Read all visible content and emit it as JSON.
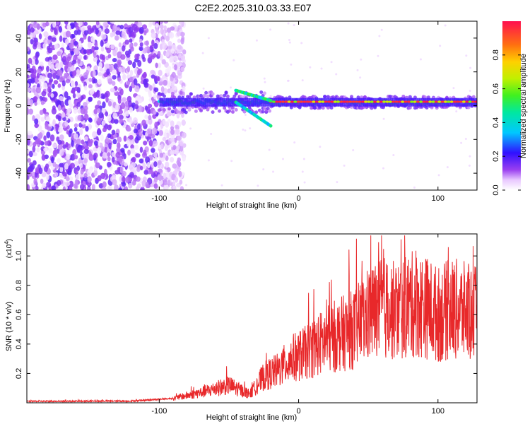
{
  "chart_data": [
    {
      "type": "heatmap",
      "title": "C2E2.2025.310.03.33.E07",
      "xlabel": "Height of straight line (km)",
      "ylabel": "Frequency (Hz)",
      "xlim": [
        -195,
        128
      ],
      "ylim": [
        -50,
        50
      ],
      "x_ticks": [
        -100,
        0,
        100
      ],
      "y_ticks": [
        -40,
        -20,
        0,
        20,
        40
      ],
      "colorbar": {
        "label": "Normalized spectral amplitude",
        "range": [
          0.0,
          1.0
        ],
        "ticks": [
          0.0,
          0.2,
          0.4,
          0.6,
          0.8
        ],
        "colormap": "rainbow (white-violet-blue-cyan-green-yellow-red)"
      },
      "description_values": {
        "noise_region_km": [
          -195,
          -90
        ],
        "signal_band_start_km": -100,
        "signal_center_hz": 2
      }
    },
    {
      "type": "line",
      "xlabel": "Height of straight line (km)",
      "ylabel": "SNR (10 * v/v)",
      "yscale_label": "(x10",
      "yscale_exp": "4",
      "yscale_close": ")",
      "xlim": [
        -195,
        128
      ],
      "ylim": [
        0,
        1.15
      ],
      "x_ticks": [
        -100,
        0,
        100
      ],
      "y_ticks": [
        0.2,
        0.4,
        0.6,
        0.8,
        1.0
      ],
      "color": "#e8282a",
      "trend": {
        "x": [
          -195,
          -120,
          -90,
          -70,
          -50,
          -35,
          -25,
          -15,
          -5,
          5,
          15,
          25,
          40,
          50,
          60,
          70,
          80,
          90,
          100,
          110,
          120,
          128
        ],
        "y": [
          0.01,
          0.012,
          0.03,
          0.07,
          0.12,
          0.06,
          0.18,
          0.22,
          0.3,
          0.34,
          0.4,
          0.45,
          0.5,
          0.6,
          0.65,
          0.62,
          0.67,
          0.66,
          0.6,
          0.64,
          0.62,
          0.6
        ]
      }
    }
  ]
}
